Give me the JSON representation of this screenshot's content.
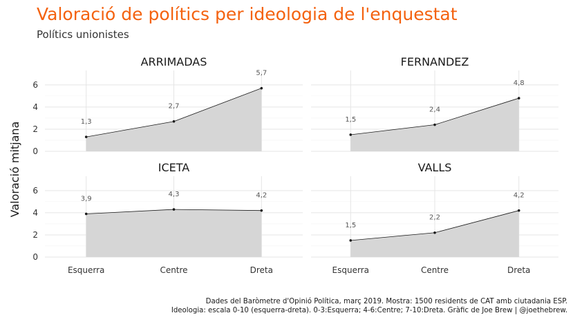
{
  "title": "Valoració de polítics per ideologia de l'enquestat",
  "subtitle": "Polítics unionistes",
  "caption_line1": "Dades del Baròmetre d'Opinió Política, març 2019. Mostra: 1500 residents de CAT amb ciutadania ESP.",
  "caption_line2": "Ideologia: escala 0-10 (esquerra-dreta). 0-3:Esquerra; 4-6:Centre; 7-10:Dreta. Gràfic de Joe Brew | @joethebrew.",
  "chart_data": {
    "type": "area",
    "ylabel": "Valoració mitjana",
    "xlabel": "",
    "categories": [
      "Esquerra",
      "Centre",
      "Dreta"
    ],
    "ylim": [
      0,
      7.3
    ],
    "yticks": [
      0,
      2,
      4,
      6
    ],
    "grid": true,
    "legend": "none",
    "fill_color": "#d6d6d6",
    "line_color": "#1a1a1a",
    "panels": [
      {
        "name": "ARRIMADAS",
        "values": [
          1.3,
          2.7,
          5.7
        ],
        "labels": [
          "1,3",
          "2,7",
          "5,7"
        ]
      },
      {
        "name": "FERNANDEZ",
        "values": [
          1.5,
          2.4,
          4.8
        ],
        "labels": [
          "1,5",
          "2,4",
          "4,8"
        ]
      },
      {
        "name": "ICETA",
        "values": [
          3.9,
          4.3,
          4.2
        ],
        "labels": [
          "3,9",
          "4,3",
          "4,2"
        ]
      },
      {
        "name": "VALLS",
        "values": [
          1.5,
          2.2,
          4.2
        ],
        "labels": [
          "1,5",
          "2,2",
          "4,2"
        ]
      }
    ]
  }
}
